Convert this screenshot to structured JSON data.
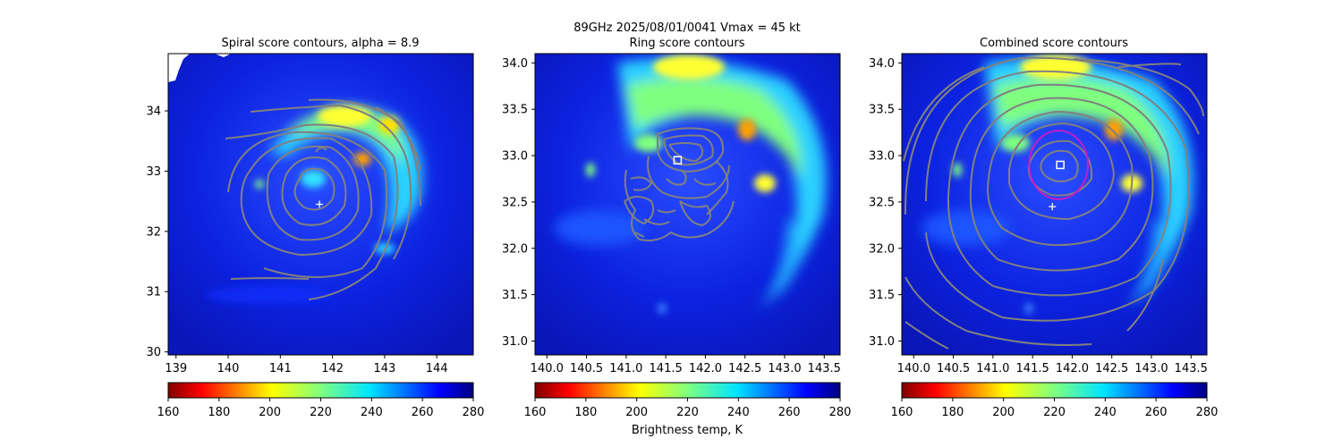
{
  "figure": {
    "suptitle_line1": "89GHz  2025/08/01/0041    Vmax = 45 kt",
    "colorbar_label": "Brightness temp, K"
  },
  "colors": {
    "cold_core": "#800000",
    "background_field": "#0a1fcf",
    "contour": "#808080",
    "ring_circle": "#c41ec4",
    "markers": "#ffffff"
  },
  "chart_data": [
    {
      "type": "heatmap",
      "title": "Spiral score contours, alpha =  8.9",
      "xlim": [
        138.85,
        144.7
      ],
      "ylim": [
        29.95,
        34.95
      ],
      "xticks": [
        139,
        140,
        141,
        142,
        143,
        144
      ],
      "yticks": [
        30,
        31,
        32,
        33,
        34
      ],
      "overlay": "spiral score contours",
      "center_plus": [
        141.75,
        32.45
      ],
      "cbar": {
        "min": 160,
        "max": 280,
        "ticks": [
          160,
          180,
          200,
          220,
          240,
          260,
          280
        ]
      }
    },
    {
      "type": "heatmap",
      "title": "Ring score contours",
      "xlim": [
        139.85,
        143.7
      ],
      "ylim": [
        30.85,
        34.1
      ],
      "xticks": [
        140.0,
        140.5,
        141.0,
        141.5,
        142.0,
        142.5,
        143.0,
        143.5
      ],
      "yticks": [
        31.0,
        31.5,
        32.0,
        32.5,
        33.0,
        33.5,
        34.0
      ],
      "overlay": "ring score contours",
      "center_square": [
        141.65,
        32.95
      ],
      "cbar": {
        "min": 160,
        "max": 280,
        "ticks": [
          160,
          180,
          200,
          220,
          240,
          260,
          280
        ]
      }
    },
    {
      "type": "heatmap",
      "title": "Combined score contours",
      "xlim": [
        139.85,
        143.7
      ],
      "ylim": [
        30.85,
        34.1
      ],
      "xticks": [
        140.0,
        140.5,
        141.0,
        141.5,
        142.0,
        142.5,
        143.0,
        143.5
      ],
      "yticks": [
        31.0,
        31.5,
        32.0,
        32.5,
        33.0,
        33.5,
        34.0
      ],
      "overlay": "combined score contours",
      "center_square": [
        141.85,
        32.9
      ],
      "center_plus": [
        141.75,
        32.45
      ],
      "ring_radius_deg": 0.37,
      "cbar": {
        "min": 160,
        "max": 280,
        "ticks": [
          160,
          180,
          200,
          220,
          240,
          260,
          280
        ]
      }
    }
  ]
}
